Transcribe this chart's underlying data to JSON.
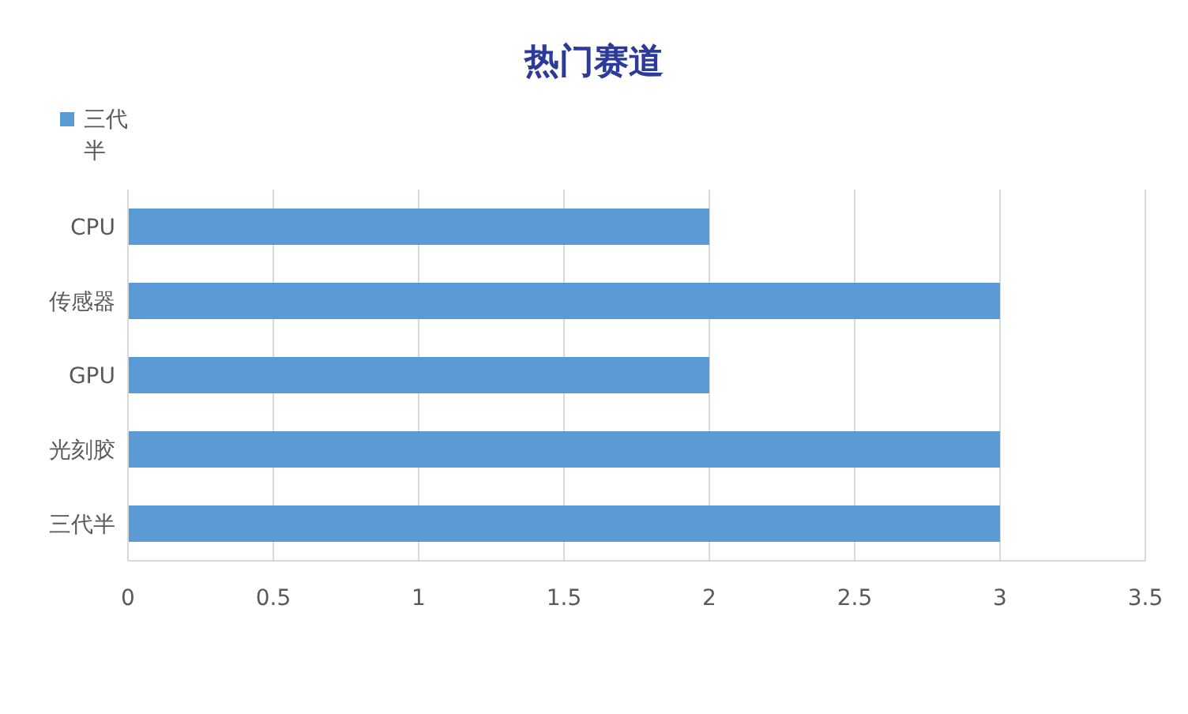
{
  "chart_data": {
    "type": "bar",
    "orientation": "horizontal",
    "title": "热门赛道",
    "categories": [
      "CPU",
      "传感器",
      "GPU",
      "光刻胶",
      "三代半"
    ],
    "series": [
      {
        "name": "三代半",
        "color": "#5b9bd5",
        "values": [
          2,
          3,
          2,
          3,
          3
        ]
      }
    ],
    "xlim": [
      0,
      3.5
    ],
    "xticks": [
      0,
      0.5,
      1,
      1.5,
      2,
      2.5,
      3,
      3.5
    ],
    "grid": "x",
    "legend": "top left"
  }
}
